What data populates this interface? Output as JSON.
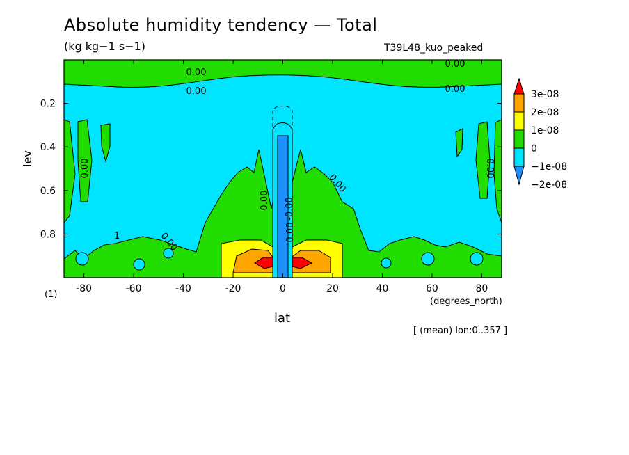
{
  "title": "Absolute humidity tendency — Total",
  "units": "(kg kg−1 s−1)",
  "run_name": "T39L48_kuo_peaked",
  "scale_note": "(1)",
  "mean_note": "[ (mean) lon:0..357 ]",
  "contour_labels": [
    "0.00",
    "0.00",
    "0.00",
    "0.00",
    "0.00",
    "0.00",
    "0.00",
    "0.00",
    "0.00",
    "-0.00",
    "1",
    "0.00"
  ],
  "colors": {
    "dark_blue": "#1e90ff",
    "light_blue": "#00e5ff",
    "green": "#22dd00",
    "yellow": "#ffff00",
    "orange": "#ffa500",
    "red": "#ff0000"
  },
  "chart_data": {
    "type": "heatmap",
    "title": "Absolute humidity tendency — Total",
    "subtitle": "(kg kg−1 s−1)",
    "xlabel": "lat",
    "xunit": "(degrees_north)",
    "ylabel": "lev",
    "xlim": [
      -88,
      88
    ],
    "ylim": [
      1.0,
      0.0
    ],
    "xticks": [
      -80,
      -60,
      -40,
      -20,
      0,
      20,
      40,
      60,
      80
    ],
    "yticks": [
      0.2,
      0.4,
      0.6,
      0.8
    ],
    "colorbar": {
      "levels": [
        "3e-08",
        "2e-08",
        "1e-08",
        "0",
        "−1e-08",
        "−2e-08"
      ],
      "colors": [
        "#ff0000",
        "#ffa500",
        "#ffff00",
        "#22dd00",
        "#00e5ff",
        "#1e90ff"
      ],
      "extend": "both"
    },
    "regions": [
      {
        "label": "positive band near model top",
        "range": "0 to 1e-08",
        "lev": [
          0.0,
          0.12
        ]
      },
      {
        "label": "equatorial negative column",
        "range": "−2e-08 to −1e-08",
        "lat": [
          -3,
          3
        ],
        "lev": [
          0.33,
          1.0
        ]
      },
      {
        "label": "subtropical positive maxima",
        "range": "1e-08 to 3e-08",
        "lat": [
          -15,
          15
        ],
        "lev": [
          0.85,
          1.0
        ]
      }
    ]
  }
}
